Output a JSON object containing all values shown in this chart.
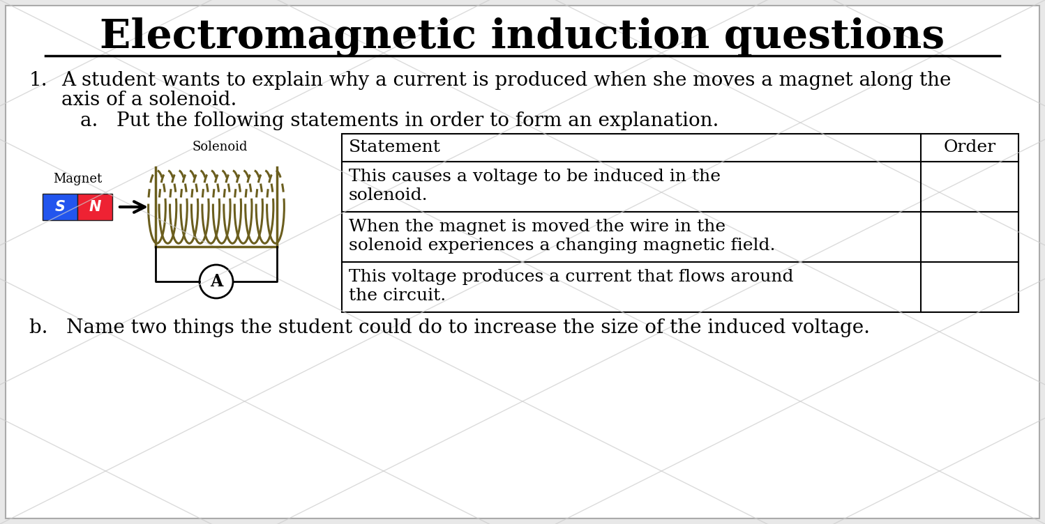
{
  "title": "Electromagnetic induction questions",
  "background_color": "#e8e8e8",
  "content_bg": "#ffffff",
  "q1_text_line1": "A student wants to explain why a current is produced when she moves a magnet along the",
  "q1_text_line2": "axis of a solenoid.",
  "q1a_text": "a.   Put the following statements in order to form an explanation.",
  "q1b_text": "b.   Name two things the student could do to increase the size of the induced voltage.",
  "solenoid_label": "Solenoid",
  "magnet_label": "Magnet",
  "ammeter_label": "A",
  "table_headers": [
    "Statement",
    "Order"
  ],
  "table_rows": [
    [
      "This causes a voltage to be induced in the",
      "solenoid."
    ],
    [
      "When the magnet is moved the wire in the",
      "solenoid experiences a changing magnetic field."
    ],
    [
      "This voltage produces a current that flows around",
      "the circuit."
    ]
  ],
  "magnet_s_color": "#2255ee",
  "magnet_n_color": "#ee2233",
  "solenoid_color": "#6B5E1E",
  "text_color": "#000000",
  "title_fontsize": 42,
  "body_fontsize": 20,
  "table_fontsize": 18
}
